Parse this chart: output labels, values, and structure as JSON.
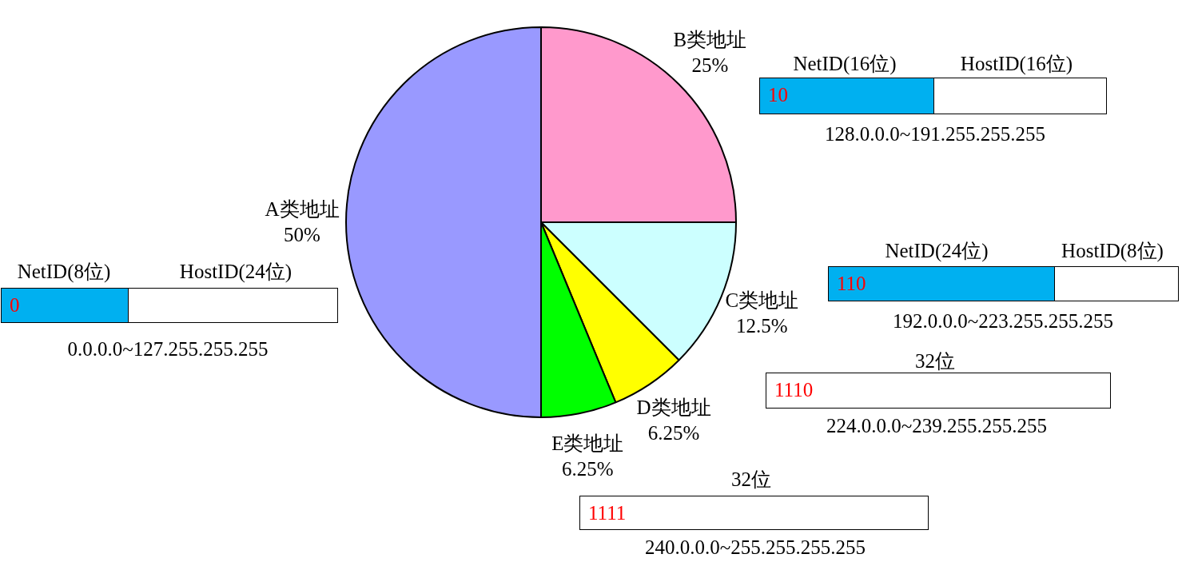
{
  "chart_data": {
    "type": "pie",
    "categories": [
      "B类地址",
      "C类地址",
      "D类地址",
      "E类地址",
      "A类地址"
    ],
    "values": [
      25,
      12.5,
      6.25,
      6.25,
      50
    ],
    "value_labels": [
      "25%",
      "12.5%",
      "6.25%",
      "6.25%",
      "50%"
    ],
    "colors": [
      "#ff99cc",
      "#ccffff",
      "#ffff00",
      "#00ff00",
      "#9999ff"
    ],
    "legend": false,
    "annotations": [
      "NetID(8位)",
      "HostID(24位)",
      "0",
      "0.0.0.0~127.255.255.255",
      "NetID(16位)",
      "HostID(16位)",
      "10",
      "128.0.0.0~191.255.255.255",
      "NetID(24位)",
      "HostID(8位)",
      "110",
      "192.0.0.0~223.255.255.255",
      "32位",
      "1110",
      "224.0.0.0~239.255.255.255",
      "32位",
      "1111",
      "240.0.0.0~255.255.255.255"
    ]
  }
}
